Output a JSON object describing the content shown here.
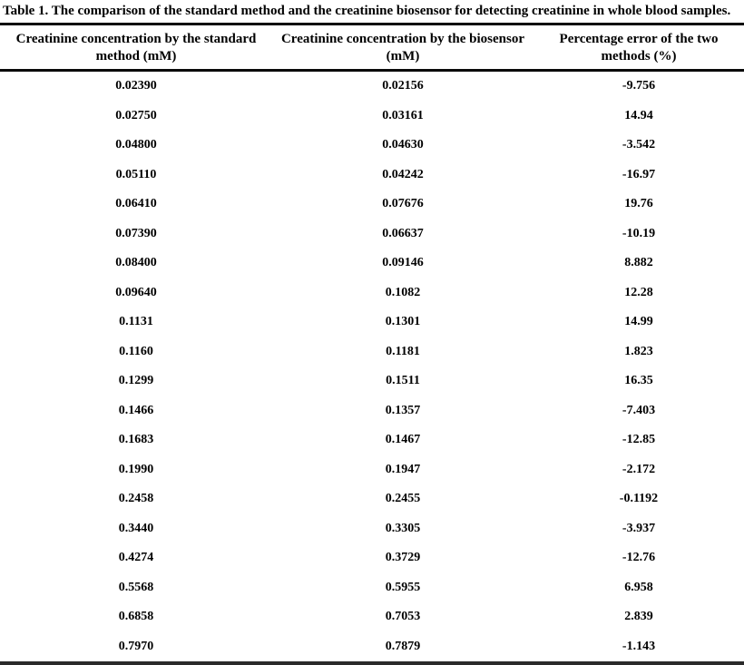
{
  "chart_data": {
    "type": "table",
    "title": "Table 1. The comparison of the standard method and the creatinine biosensor for detecting creatinine in whole blood samples.",
    "columns": [
      {
        "line1": "Creatinine concentration by the standard",
        "line2": "method (mM)"
      },
      {
        "line1": "Creatinine concentration by the biosensor",
        "line2": "(mM)"
      },
      {
        "line1": "Percentage error of the two",
        "line2": "methods (%)"
      }
    ],
    "rows": [
      [
        "0.02390",
        "0.02156",
        "-9.756"
      ],
      [
        "0.02750",
        "0.03161",
        "14.94"
      ],
      [
        "0.04800",
        "0.04630",
        "-3.542"
      ],
      [
        "0.05110",
        "0.04242",
        "-16.97"
      ],
      [
        "0.06410",
        "0.07676",
        "19.76"
      ],
      [
        "0.07390",
        "0.06637",
        "-10.19"
      ],
      [
        "0.08400",
        "0.09146",
        "8.882"
      ],
      [
        "0.09640",
        "0.1082",
        "12.28"
      ],
      [
        "0.1131",
        "0.1301",
        "14.99"
      ],
      [
        "0.1160",
        "0.1181",
        "1.823"
      ],
      [
        "0.1299",
        "0.1511",
        "16.35"
      ],
      [
        "0.1466",
        "0.1357",
        "-7.403"
      ],
      [
        "0.1683",
        "0.1467",
        "-12.85"
      ],
      [
        "0.1990",
        "0.1947",
        "-2.172"
      ],
      [
        "0.2458",
        "0.2455",
        "-0.1192"
      ],
      [
        "0.3440",
        "0.3305",
        "-3.937"
      ],
      [
        "0.4274",
        "0.3729",
        "-12.76"
      ],
      [
        "0.5568",
        "0.5955",
        "6.958"
      ],
      [
        "0.6858",
        "0.7053",
        "2.839"
      ],
      [
        "0.7970",
        "0.7879",
        "-1.143"
      ]
    ]
  }
}
